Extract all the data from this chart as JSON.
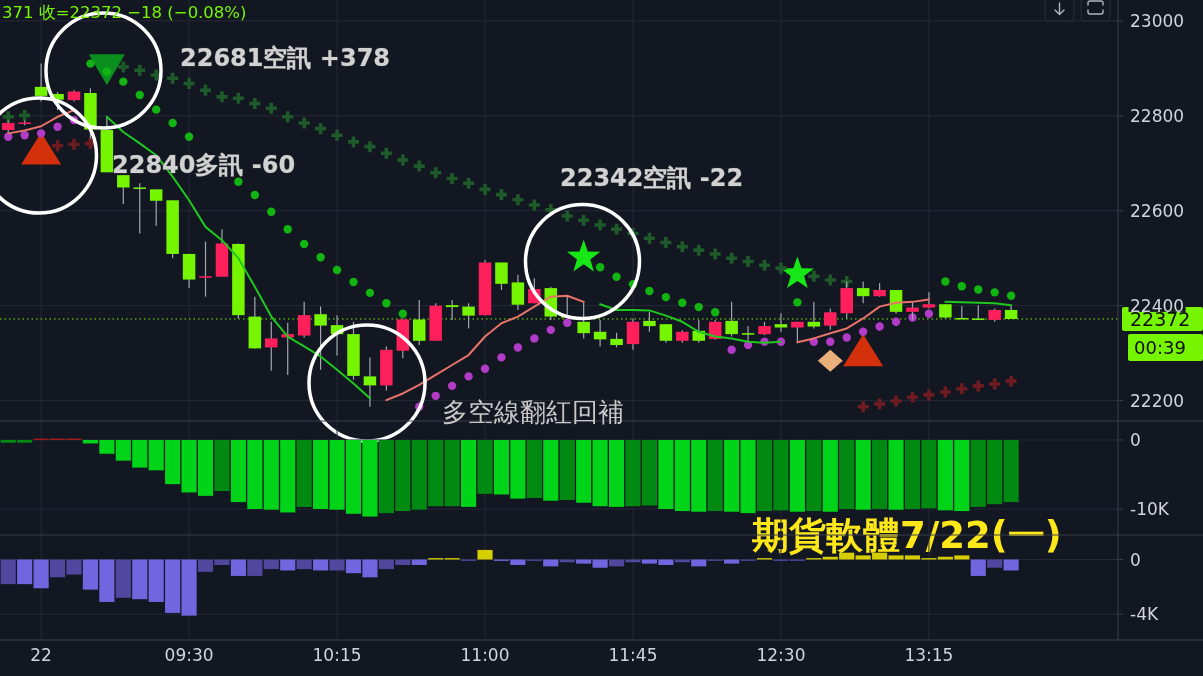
{
  "chart_data": [
    {
      "type": "candlestick",
      "categories": [
        null,
        null,
        null,
        null,
        null,
        null,
        null,
        null,
        null,
        null,
        null,
        null,
        null,
        null,
        null,
        null,
        null,
        null,
        null,
        null,
        null,
        null,
        null,
        null,
        null,
        null,
        null,
        null,
        null,
        null,
        null,
        null,
        null,
        null,
        null,
        null,
        null,
        null,
        null,
        null,
        null,
        null,
        null,
        null,
        null,
        null,
        null,
        null,
        null,
        null,
        null,
        null,
        null,
        null,
        null,
        null,
        null,
        null,
        null,
        null,
        null,
        null,
        null,
        null,
        null,
        null,
        null,
        null
      ],
      "ohlc": [
        [
          22770,
          22790,
          22765,
          22785
        ],
        [
          22783,
          22790,
          22780,
          22786
        ],
        [
          22861,
          22910,
          22830,
          22842
        ],
        [
          22846,
          22850,
          22812,
          22834
        ],
        [
          22833,
          22854,
          22830,
          22851
        ],
        [
          22848,
          22858,
          22752,
          22771
        ],
        [
          22770,
          22798,
          22681,
          22681
        ],
        [
          22675,
          22675,
          22614,
          22649
        ],
        [
          22649,
          22658,
          22552,
          22647
        ],
        [
          22645,
          22645,
          22568,
          22621
        ],
        [
          22622,
          22622,
          22500,
          22509
        ],
        [
          22509,
          22509,
          22437,
          22455
        ],
        [
          22460,
          22535,
          22419,
          22462
        ],
        [
          22461,
          22561,
          22461,
          22531
        ],
        [
          22530,
          22531,
          22373,
          22380
        ],
        [
          22377,
          22419,
          22310,
          22310
        ],
        [
          22312,
          22366,
          22263,
          22331
        ],
        [
          22333,
          22364,
          22254,
          22340
        ],
        [
          22337,
          22408,
          22333,
          22380
        ],
        [
          22382,
          22398,
          22265,
          22358
        ],
        [
          22359,
          22380,
          22295,
          22340
        ],
        [
          22340,
          22366,
          22244,
          22252
        ],
        [
          22251,
          22291,
          22187,
          22232
        ],
        [
          22232,
          22314,
          22221,
          22307
        ],
        [
          22305,
          22373,
          22289,
          22371
        ],
        [
          22371,
          22412,
          22317,
          22326
        ],
        [
          22326,
          22405,
          22326,
          22400
        ],
        [
          22401,
          22412,
          22370,
          22397
        ],
        [
          22398,
          22405,
          22352,
          22379
        ],
        [
          22380,
          22496,
          22380,
          22491
        ],
        [
          22491,
          22491,
          22433,
          22446
        ],
        [
          22449,
          22465,
          22391,
          22402
        ],
        [
          22405,
          22458,
          22405,
          22435
        ],
        [
          22437,
          22440,
          22370,
          22377
        ],
        [
          22378,
          22419,
          22375,
          22377
        ],
        [
          22366,
          22408,
          22331,
          22342
        ],
        [
          22345,
          22370,
          22314,
          22329
        ],
        [
          22330,
          22343,
          22312,
          22317
        ],
        [
          22319,
          22373,
          22307,
          22366
        ],
        [
          22368,
          22387,
          22345,
          22357
        ],
        [
          22361,
          22361,
          22322,
          22326
        ],
        [
          22326,
          22348,
          22322,
          22345
        ],
        [
          22347,
          22370,
          22322,
          22326
        ],
        [
          22330,
          22370,
          22328,
          22366
        ],
        [
          22368,
          22408,
          22335,
          22340
        ],
        [
          22342,
          22357,
          22322,
          22341
        ],
        [
          22340,
          22366,
          22338,
          22357
        ],
        [
          22361,
          22384,
          22345,
          22354
        ],
        [
          22354,
          22366,
          22321,
          22366
        ],
        [
          22366,
          22408,
          22352,
          22356
        ],
        [
          22358,
          22394,
          22349,
          22386
        ],
        [
          22384,
          22451,
          22373,
          22437
        ],
        [
          22437,
          22451,
          22405,
          22420
        ],
        [
          22420,
          22448,
          22419,
          22433
        ],
        [
          22433,
          22433,
          22383,
          22387
        ],
        [
          22387,
          22408,
          22370,
          22396
        ],
        [
          22396,
          22428,
          22394,
          22403
        ],
        [
          22403,
          22403,
          22373,
          22375
        ],
        [
          22374,
          22399,
          22373,
          22373
        ],
        [
          22373,
          22401,
          22370,
          22371
        ],
        [
          22370,
          22394,
          22366,
          22391
        ],
        [
          22391,
          22401,
          22372,
          22372
        ],
        null,
        null,
        null,
        null,
        null,
        null
      ],
      "colors": [
        "#ff1f5a",
        "#ff1f5a",
        "#76f500",
        "#76f500",
        "#ff1f5a",
        "#76f500",
        "#76f500",
        "#76f500",
        "#76f500",
        "#76f500",
        "#76f500",
        "#76f500",
        "#ff1f5a",
        "#ff1f5a",
        "#76f500",
        "#76f500",
        "#ff1f5a",
        "#ff1f5a",
        "#ff1f5a",
        "#76f500",
        "#76f500",
        "#76f500",
        "#76f500",
        "#ff1f5a",
        "#ff1f5a",
        "#76f500",
        "#ff1f5a",
        "#76f500",
        "#76f500",
        "#ff1f5a",
        "#76f500",
        "#76f500",
        "#ff1f5a",
        "#76f500",
        "#76f500",
        "#76f500",
        "#76f500",
        "#76f500",
        "#ff1f5a",
        "#76f500",
        "#76f500",
        "#ff1f5a",
        "#76f500",
        "#ff1f5a",
        "#76f500",
        "#76f500",
        "#ff1f5a",
        "#76f500",
        "#ff1f5a",
        "#76f500",
        "#ff1f5a",
        "#ff1f5a",
        "#76f500",
        "#ff1f5a",
        "#76f500",
        "#ff1f5a",
        "#ff1f5a",
        "#76f500",
        "#76f500",
        "#76f500",
        "#ff1f5a",
        "#76f500",
        null,
        null,
        null,
        null,
        null,
        null
      ],
      "ylim": [
        22157,
        23044
      ],
      "yticks": [
        22200,
        22400,
        22600,
        22800,
        23000
      ],
      "grid": true,
      "tick_labels": "y",
      "series": [
        {
          "type": "line",
          "color": "#e8736a",
          "values": [
            22763,
            22769,
            22778,
            22798,
            22812,
            null,
            null,
            null,
            null,
            null,
            null,
            null,
            null,
            null,
            null,
            null,
            null,
            null,
            null,
            null,
            null,
            null,
            null,
            22201,
            22215,
            22233,
            22254,
            22275,
            22296,
            22335,
            22363,
            22377,
            22398,
            22419,
            22421,
            22408,
            null,
            null,
            null,
            null,
            null,
            null,
            null,
            null,
            null,
            null,
            null,
            null,
            22323,
            22331,
            22342,
            22352,
            22373,
            22398,
            22406,
            22408,
            22413,
            null,
            null,
            null,
            null,
            null,
            null,
            null,
            null,
            null,
            null,
            null
          ]
        },
        {
          "type": "line",
          "color": "#1ec81e",
          "values": [
            null,
            null,
            null,
            null,
            null,
            null,
            22798,
            22766,
            22742,
            22717,
            22672,
            22622,
            22566,
            22538,
            22500,
            22440,
            22377,
            22335,
            22314,
            22293,
            22265,
            22236,
            22205,
            null,
            null,
            null,
            null,
            null,
            null,
            null,
            null,
            null,
            null,
            null,
            null,
            null,
            22403,
            22391,
            22391,
            22390,
            22379,
            22366,
            22345,
            22335,
            22331,
            22324,
            22322,
            22324,
            null,
            null,
            null,
            null,
            null,
            null,
            null,
            null,
            null,
            22408,
            22407,
            22406,
            22405,
            22401,
            null,
            null,
            null,
            null,
            null,
            null
          ]
        },
        {
          "type": "scatter",
          "marker": "triangle",
          "color": "#d4300c",
          "values": [
            null,
            null,
            22731,
            null,
            null,
            null,
            null,
            null,
            null,
            null,
            null,
            null,
            null,
            null,
            null,
            null,
            null,
            null,
            null,
            null,
            null,
            null,
            null,
            null,
            null,
            null,
            null,
            null,
            null,
            null,
            null,
            null,
            null,
            null,
            null,
            null,
            null,
            null,
            null,
            null,
            null,
            null,
            null,
            null,
            null,
            null,
            null,
            null,
            null,
            null,
            null,
            null,
            22306,
            null,
            null,
            null,
            null,
            null,
            null,
            null,
            null,
            null,
            null,
            null,
            null,
            null,
            null,
            null
          ]
        },
        {
          "type": "scatter",
          "marker": "triangle-down",
          "color": "#0a8f1e",
          "values": [
            null,
            null,
            null,
            null,
            null,
            null,
            22898,
            null,
            null,
            null,
            null,
            null,
            null,
            null,
            null,
            null,
            null,
            null,
            null,
            null,
            null,
            null,
            null,
            null,
            null,
            null,
            null,
            null,
            null,
            null,
            null,
            null,
            null,
            null,
            null,
            null,
            null,
            null,
            null,
            null,
            null,
            null,
            null,
            null,
            null,
            null,
            null,
            null,
            null,
            null,
            null,
            null,
            null,
            null,
            null,
            null,
            null,
            null,
            null,
            null,
            null,
            null,
            null,
            null,
            null,
            null,
            null,
            null
          ]
        },
        {
          "type": "scatter",
          "marker": "star",
          "color": "#17e617",
          "values": [
            null,
            null,
            null,
            null,
            null,
            null,
            null,
            null,
            null,
            null,
            null,
            null,
            null,
            null,
            null,
            null,
            null,
            null,
            null,
            null,
            null,
            null,
            null,
            null,
            null,
            null,
            null,
            null,
            null,
            null,
            null,
            null,
            null,
            null,
            null,
            22502,
            null,
            null,
            null,
            null,
            null,
            null,
            null,
            null,
            null,
            null,
            null,
            null,
            22467,
            null,
            null,
            null,
            null,
            null,
            null,
            null,
            null,
            null,
            null,
            null,
            null,
            null,
            null,
            null,
            null,
            null,
            null,
            null
          ]
        },
        {
          "type": "scatter",
          "marker": "diamond",
          "color": "#e9b07b",
          "values": [
            null,
            null,
            null,
            null,
            null,
            null,
            null,
            null,
            null,
            null,
            null,
            null,
            null,
            null,
            null,
            null,
            null,
            null,
            null,
            null,
            null,
            null,
            null,
            null,
            null,
            null,
            null,
            null,
            null,
            null,
            null,
            null,
            null,
            null,
            null,
            null,
            null,
            null,
            null,
            null,
            null,
            null,
            null,
            null,
            null,
            null,
            null,
            null,
            null,
            null,
            22284,
            null,
            null,
            null,
            null,
            null,
            null,
            null,
            null,
            null,
            null,
            null,
            null,
            null,
            null,
            null,
            null,
            null
          ]
        },
        {
          "type": "scatter",
          "marker": "cross",
          "color": "#1f5a2a",
          "values": [
            22798,
            22801,
            null,
            null,
            null,
            null,
            null,
            22903,
            22896,
            22886,
            22879,
            22868,
            22854,
            22840,
            22837,
            22826,
            22816,
            22798,
            22785,
            22773,
            22759,
            22745,
            22735,
            22721,
            22707,
            22694,
            22680,
            22668,
            22658,
            22645,
            22634,
            22623,
            22612,
            22602,
            22589,
            22580,
            22570,
            22561,
            22552,
            22542,
            22533,
            22524,
            22517,
            22509,
            22500,
            22493,
            22485,
            22479,
            null,
            22462,
            22454,
            22451,
            null,
            null,
            null,
            null,
            null,
            null,
            null,
            null,
            null,
            null,
            null,
            null,
            null,
            null,
            null,
            null
          ]
        },
        {
          "type": "scatter",
          "marker": "cross",
          "color": "#6e1c22",
          "values": [
            null,
            null,
            null,
            22737,
            22740,
            22742,
            null,
            null,
            null,
            null,
            null,
            null,
            null,
            null,
            null,
            null,
            null,
            null,
            null,
            null,
            null,
            null,
            null,
            null,
            null,
            null,
            null,
            null,
            null,
            null,
            null,
            null,
            null,
            null,
            null,
            null,
            null,
            null,
            null,
            null,
            null,
            null,
            null,
            null,
            null,
            null,
            null,
            null,
            null,
            null,
            null,
            null,
            22187,
            22193,
            22199,
            22207,
            22212,
            22218,
            22225,
            22231,
            22235,
            22241,
            null,
            null,
            null,
            null,
            null,
            null
          ]
        },
        {
          "type": "scatter",
          "marker": "circle",
          "color": "#12b412",
          "values": [
            null,
            null,
            null,
            null,
            null,
            22910,
            22893,
            22872,
            22844,
            22813,
            22785,
            22756,
            null,
            null,
            22661,
            22633,
            22598,
            22561,
            22530,
            22502,
            22475,
            22450,
            22427,
            22405,
            22383,
            null,
            null,
            null,
            null,
            null,
            null,
            null,
            null,
            null,
            null,
            null,
            22481,
            22461,
            22445,
            22431,
            22418,
            22406,
            22397,
            22386,
            null,
            null,
            null,
            null,
            22407,
            null,
            null,
            null,
            null,
            null,
            null,
            null,
            null,
            22451,
            22441,
            22434,
            22428,
            22421,
            null,
            null,
            null,
            null,
            null,
            null
          ]
        },
        {
          "type": "scatter",
          "marker": "circle",
          "color": "#b23cc8",
          "values": [
            22756,
            22759,
            22763,
            22777,
            22791,
            null,
            null,
            null,
            null,
            null,
            null,
            null,
            null,
            null,
            null,
            null,
            null,
            null,
            null,
            null,
            null,
            null,
            null,
            null,
            null,
            22187,
            22210,
            22231,
            22251,
            22267,
            22291,
            22312,
            22331,
            22349,
            22364,
            null,
            null,
            null,
            null,
            null,
            null,
            null,
            null,
            null,
            22307,
            22317,
            22324,
            22324,
            null,
            22324,
            22324,
            22333,
            22345,
            22356,
            22366,
            22375,
            22383,
            null,
            null,
            null,
            null,
            null,
            null,
            null,
            null,
            null,
            null,
            null
          ]
        }
      ],
      "ref_lines": [
        {
          "axis": "y",
          "value": 22372,
          "label": "22372",
          "color": "#76f500",
          "line_style": "dotted"
        }
      ],
      "annotations": [
        "371 收=22372 −18 (−0.08%)",
        "22681空訊 +378",
        "22840多訊 -60",
        "22342空訊 -22",
        "多空線翻紅回補",
        "期貨軟體7/22(一)",
        "00:39"
      ]
    },
    {
      "type": "bar",
      "categories": [
        null,
        null,
        null,
        null,
        null,
        null,
        null,
        null,
        null,
        null,
        null,
        null,
        null,
        null,
        null,
        null,
        null,
        null,
        null,
        null,
        null,
        null,
        null,
        null,
        null,
        null,
        null,
        null,
        null,
        null,
        null,
        null,
        null,
        null,
        null,
        null,
        null,
        null,
        null,
        null,
        null,
        null,
        null,
        null,
        null,
        null,
        null,
        null,
        null,
        null,
        null,
        null,
        null,
        null,
        null,
        null,
        null,
        null,
        null,
        null,
        null,
        null,
        null,
        null,
        null,
        null,
        null,
        null
      ],
      "values": [
        -400,
        -400,
        200,
        200,
        200,
        -500,
        -2000,
        -3000,
        -4000,
        -4400,
        -6400,
        -7600,
        -8100,
        -7400,
        -9000,
        -10000,
        -10100,
        -10500,
        -9700,
        -10000,
        -10100,
        -10700,
        -11100,
        -10600,
        -10300,
        -10100,
        -9600,
        -9600,
        -9700,
        -7800,
        -7900,
        -8500,
        -8400,
        -8800,
        -8700,
        -9100,
        -9600,
        -9700,
        -9600,
        -9500,
        -10000,
        -10300,
        -10400,
        -10300,
        -10400,
        -10600,
        -10300,
        -10200,
        -10400,
        -10300,
        -10400,
        -10000,
        -10100,
        -10000,
        -10100,
        -10000,
        -9900,
        -10200,
        -10300,
        -9700,
        -9300,
        -9000,
        null,
        null,
        null,
        null,
        null,
        null
      ],
      "colors": [
        "#008a12",
        "#008a12",
        "#a81c1c",
        "#a81c1c",
        "#a81c1c",
        "#00d418",
        "#00d418",
        "#00d418",
        "#00d418",
        "#00d418",
        "#00d418",
        "#00d418",
        "#00d418",
        "#008a12",
        "#00d418",
        "#00d418",
        "#00d418",
        "#00d418",
        "#008a12",
        "#00d418",
        "#00d418",
        "#00d418",
        "#00d418",
        "#008a12",
        "#008a12",
        "#008a12",
        "#008a12",
        "#008a12",
        "#00d418",
        "#008a12",
        "#00d418",
        "#00d418",
        "#008a12",
        "#00d418",
        "#008a12",
        "#00d418",
        "#00d418",
        "#00d418",
        "#008a12",
        "#008a12",
        "#00d418",
        "#00d418",
        "#00d418",
        "#008a12",
        "#00d418",
        "#00d418",
        "#008a12",
        "#008a12",
        "#00d418",
        "#008a12",
        "#00d418",
        "#008a12",
        "#00d418",
        "#008a12",
        "#00d418",
        "#008a12",
        "#008a12",
        "#00d418",
        "#00d418",
        "#008a12",
        "#008a12",
        "#008a12",
        null,
        null,
        null,
        null,
        null,
        null
      ],
      "ylim": [
        -13770,
        2750
      ],
      "yticks": [
        0,
        {
          "value": -10000,
          "label": "-10K"
        }
      ],
      "grid": true,
      "tick_labels": "y"
    },
    {
      "type": "bar",
      "categories": [
        null,
        null,
        "22",
        null,
        null,
        null,
        null,
        null,
        null,
        null,
        null,
        "09:30",
        null,
        null,
        null,
        null,
        null,
        null,
        null,
        null,
        "10:15",
        null,
        null,
        null,
        null,
        null,
        null,
        null,
        null,
        "11:00",
        null,
        null,
        null,
        null,
        null,
        null,
        null,
        null,
        "11:45",
        null,
        null,
        null,
        null,
        null,
        null,
        null,
        null,
        "12:30",
        null,
        null,
        null,
        null,
        null,
        null,
        null,
        null,
        "13:15",
        null,
        null,
        null,
        null,
        null,
        null,
        null,
        null,
        null,
        null,
        null
      ],
      "values": [
        -1800,
        -1800,
        -2100,
        -1300,
        -1100,
        -2200,
        -3100,
        -2800,
        -2900,
        -3100,
        -3900,
        -4100,
        -900,
        -400,
        -1200,
        -1200,
        -700,
        -800,
        -700,
        -800,
        -800,
        -1000,
        -1300,
        -700,
        -400,
        -400,
        100,
        100,
        -100,
        700,
        -100,
        -400,
        -100,
        -500,
        -200,
        -300,
        -600,
        -500,
        -200,
        -300,
        -400,
        -200,
        -500,
        -100,
        -300,
        -100,
        100,
        -100,
        -100,
        100,
        200,
        500,
        300,
        500,
        300,
        300,
        100,
        200,
        300,
        -1200,
        -600,
        -800,
        null,
        null,
        null,
        null,
        null,
        null
      ],
      "colors": [
        "#51479e",
        "#7166e0",
        "#7166e0",
        "#51479e",
        "#51479e",
        "#7166e0",
        "#7166e0",
        "#51479e",
        "#7166e0",
        "#7166e0",
        "#7166e0",
        "#7166e0",
        "#51479e",
        "#51479e",
        "#7166e0",
        "#51479e",
        "#51479e",
        "#7166e0",
        "#51479e",
        "#7166e0",
        "#51479e",
        "#7166e0",
        "#7166e0",
        "#51479e",
        "#51479e",
        "#7166e0",
        "#d6ce00",
        "#d6ce00",
        "#51479e",
        "#d6ce00",
        "#7166e0",
        "#7166e0",
        "#51479e",
        "#7166e0",
        "#51479e",
        "#7166e0",
        "#7166e0",
        "#51479e",
        "#51479e",
        "#7166e0",
        "#7166e0",
        "#51479e",
        "#7166e0",
        "#51479e",
        "#7166e0",
        "#51479e",
        "#d6ce00",
        "#51479e",
        "#51479e",
        "#d6ce00",
        "#d6ce00",
        "#d6ce00",
        "#d6ce00",
        "#d6ce00",
        "#d6ce00",
        "#d6ce00",
        "#d6ce00",
        "#d6ce00",
        "#d6ce00",
        "#7166e0",
        "#51479e",
        "#7166e0",
        null,
        null,
        null,
        null,
        null,
        null
      ],
      "ylim": [
        -5880,
        1790
      ],
      "yticks": [
        0,
        {
          "value": -4000,
          "label": "-4K"
        }
      ],
      "grid": true
    }
  ]
}
